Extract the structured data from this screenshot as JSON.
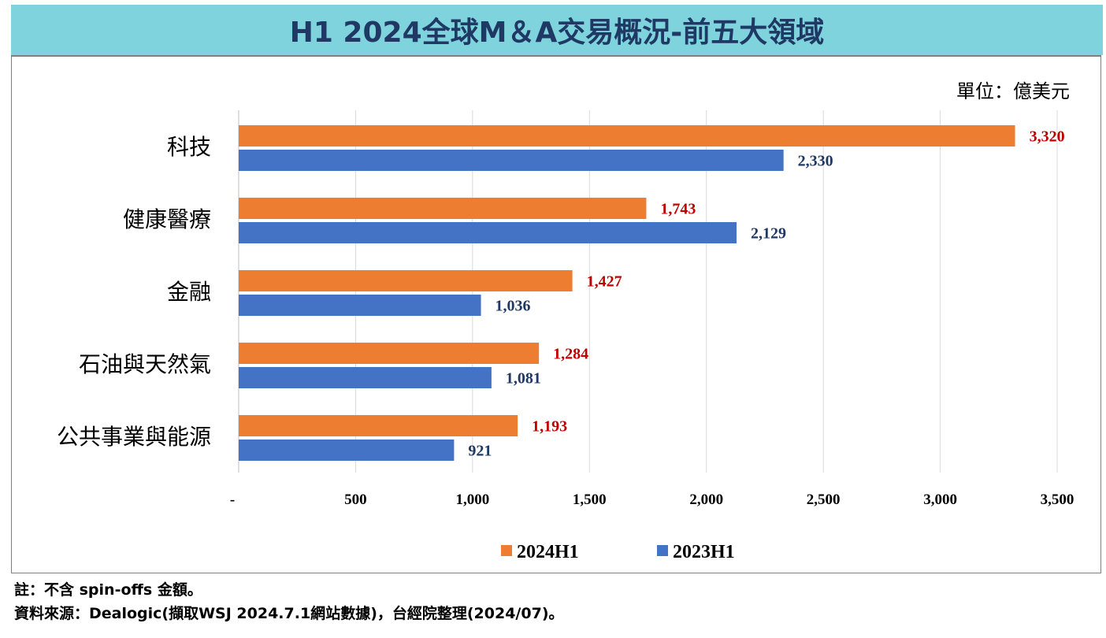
{
  "title": "H1 2024全球M＆A交易概況-前五大領域",
  "unit_label": "單位：億美元",
  "notes": [
    "註：不含 spin-offs 金額。",
    "資料來源：Dealogic(擷取WSJ 2024.7.1網站數據)，台經院整理(2024/07)。"
  ],
  "chart_data": {
    "type": "bar",
    "orientation": "horizontal",
    "categories": [
      "科技",
      "健康醫療",
      "金融",
      "石油與天然氣",
      "公共事業與能源"
    ],
    "series": [
      {
        "name": "2024H1",
        "values": [
          3320,
          1743,
          1427,
          1284,
          1193
        ],
        "labels": [
          "3,320",
          "1,743",
          "1,427",
          "1,284",
          "1,193"
        ],
        "color": "#ED7D31",
        "label_color": "#C00000"
      },
      {
        "name": "2023H1",
        "values": [
          2330,
          2129,
          1036,
          1081,
          921
        ],
        "labels": [
          "2,330",
          "2,129",
          "1,036",
          "1,081",
          "921"
        ],
        "color": "#4472C4",
        "label_color": "#1F3864"
      }
    ],
    "xlim": [
      0,
      3500
    ],
    "ticks": [
      0,
      500,
      1000,
      1500,
      2000,
      2500,
      3000,
      3500
    ],
    "tick_labels": [
      "-",
      "500",
      "1,000",
      "1,500",
      "2,000",
      "2,500",
      "3,000",
      "3,500"
    ],
    "grid": true,
    "legend": "bottom"
  }
}
